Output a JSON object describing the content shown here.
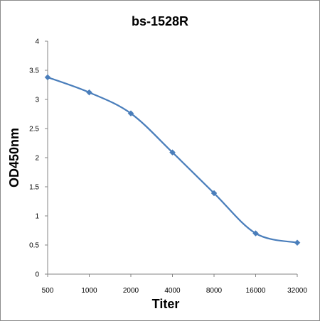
{
  "chart_data": {
    "type": "line",
    "title": "bs-1528R",
    "xlabel": "Titer",
    "ylabel": "OD450nm",
    "categories": [
      "500",
      "1000",
      "2000",
      "4000",
      "8000",
      "16000",
      "32000"
    ],
    "series": [
      {
        "values": [
          3.38,
          3.12,
          2.76,
          2.09,
          1.39,
          0.7,
          0.54
        ]
      }
    ],
    "ylim": [
      0,
      4
    ],
    "yticks": [
      "0",
      "0.5",
      "1",
      "1.5",
      "2",
      "2.5",
      "3",
      "3.5",
      "4"
    ],
    "grid": false,
    "legend": "none",
    "line_color": "#4a7ebb",
    "marker": "diamond"
  }
}
